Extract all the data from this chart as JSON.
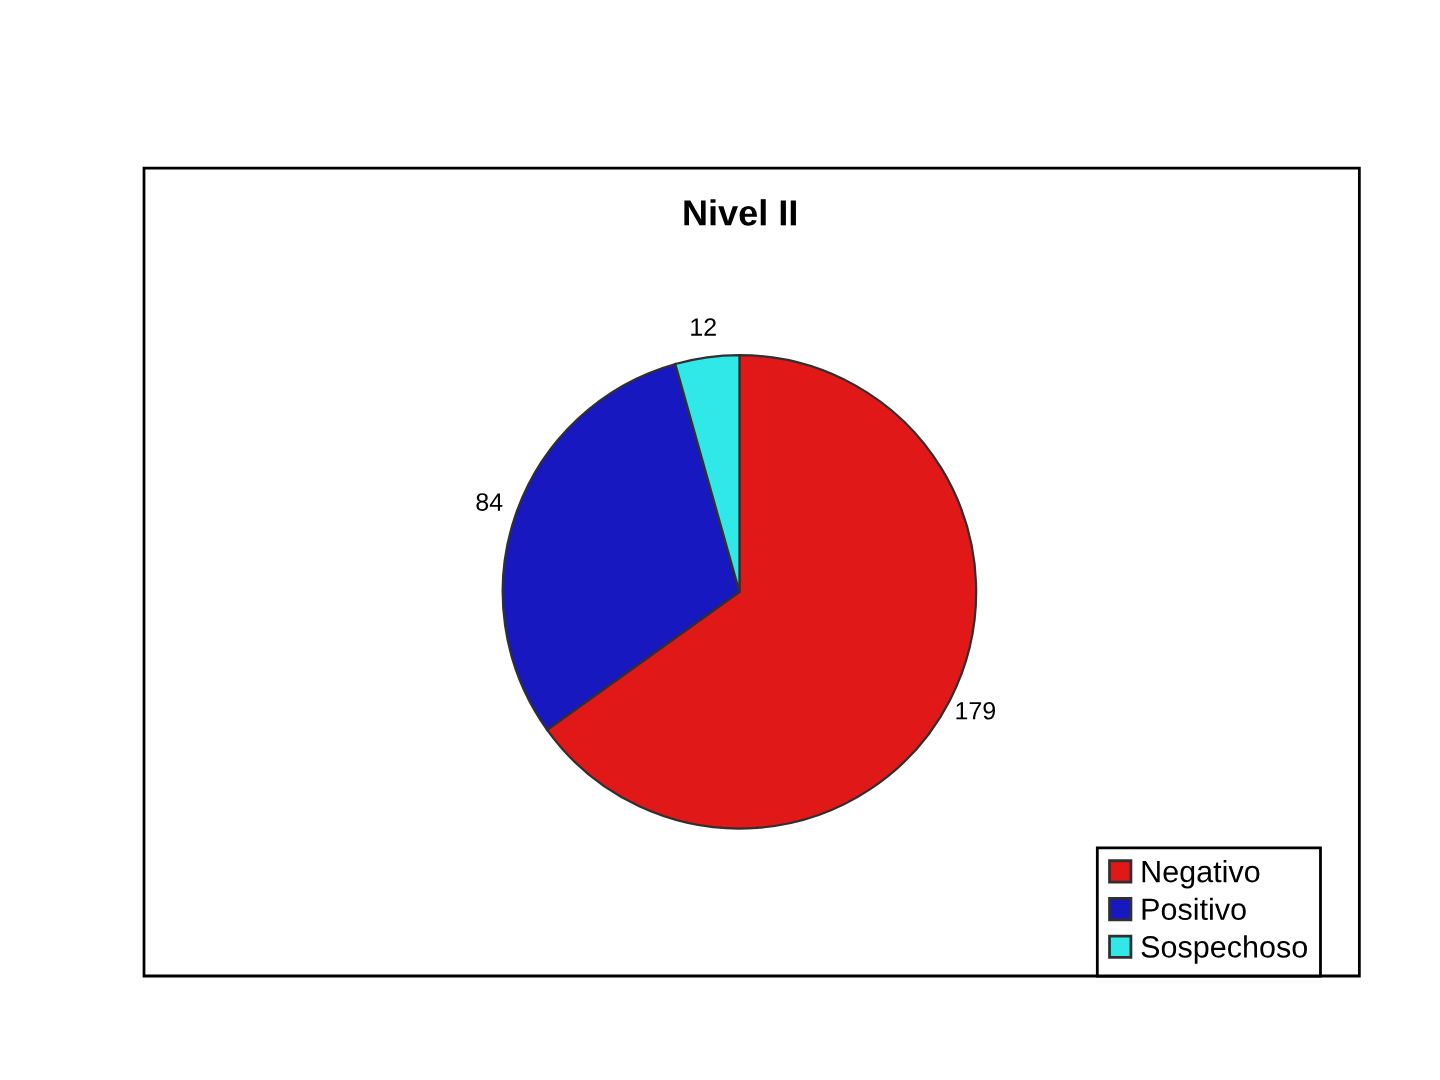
{
  "chart_data": {
    "type": "pie",
    "title": "Nivel II",
    "categories": [
      "Negativo",
      "Positivo",
      "Sospechoso"
    ],
    "values": [
      179,
      84,
      12
    ],
    "colors": [
      "#e01818",
      "#1818c0",
      "#30e8e8"
    ],
    "data_labels": true,
    "legend": "bottom right"
  }
}
